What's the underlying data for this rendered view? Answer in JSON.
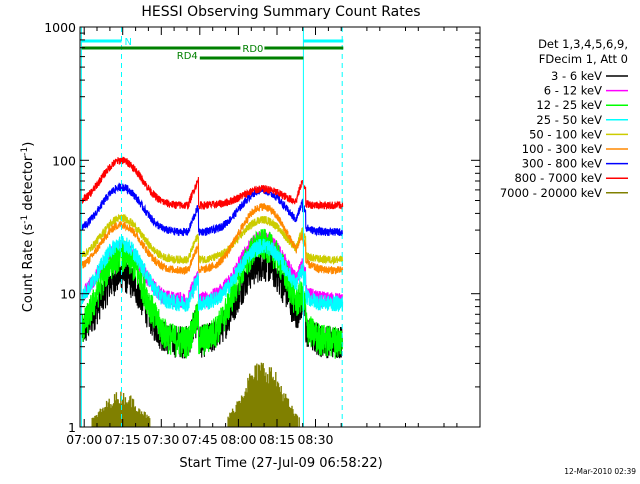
{
  "chart_data": {
    "type": "line",
    "title": "HESSI Observing Summary Count Rates",
    "xlabel": "Start Time (27-Jul-09 06:58:22)",
    "ylabel_main": "Count Rate (s",
    "ylabel_sup1": "-1",
    "ylabel_mid": " detector",
    "ylabel_sup2": "-1",
    "ylabel_end": ")",
    "yscale": "log",
    "ylim": [
      1,
      1000
    ],
    "xlim_minutes": [
      418.37,
      574.0
    ],
    "xtick_minutes": [
      420,
      435,
      450,
      465,
      480,
      495,
      510
    ],
    "xtick_labels": [
      "07:00",
      "07:15",
      "07:30",
      "07:45",
      "08:00",
      "08:15",
      "08:30"
    ],
    "ytick_values": [
      1,
      10,
      100,
      1000
    ],
    "ytick_labels": [
      "1",
      "10",
      "100",
      "1000"
    ],
    "legend_header": [
      "Det 1,3,4,5,6,9,",
      "FDecim 1, Att 0"
    ],
    "legend_position": "right",
    "series": [
      {
        "name": "3 - 6 keV",
        "color": "#000000",
        "base": 4.5,
        "peak1": 14,
        "peak2": 17
      },
      {
        "name": "6 - 12 keV",
        "color": "#ff00ff",
        "base": 9,
        "peak1": 22,
        "peak2": 26
      },
      {
        "name": "12 - 25 keV",
        "color": "#00ff00",
        "base": 4.5,
        "peak1": 20,
        "peak2": 24
      },
      {
        "name": "25 - 50 keV",
        "color": "#00ffff",
        "base": 8.5,
        "peak1": 24,
        "peak2": 23
      },
      {
        "name": "50 - 100 keV",
        "color": "#cccc00",
        "base": 18,
        "peak1": 37,
        "peak2": 36
      },
      {
        "name": "100 - 300 keV",
        "color": "#ff8800",
        "base": 15,
        "peak1": 33,
        "peak2": 45
      },
      {
        "name": "300 - 800 keV",
        "color": "#0000ff",
        "base": 29,
        "peak1": 63,
        "peak2": 60
      },
      {
        "name": "800 - 7000 keV",
        "color": "#ff0000",
        "base": 46,
        "peak1": 100,
        "peak2": 61
      },
      {
        "name": "7000 - 20000 keV",
        "color": "#808000",
        "base": 1,
        "peak1": 1.8,
        "peak2": 3
      }
    ],
    "hump1_center_minutes": 434.5,
    "hump2_center_minutes": 489.5,
    "hump_range_1": [
      421,
      447
    ],
    "hump_range_2": [
      476,
      504
    ],
    "saa_exit_minutes": 464.5,
    "transition_minutes": 505,
    "vertical_lines": [
      {
        "minutes": 418.9,
        "style": "solid",
        "color": "#00ffff"
      },
      {
        "minutes": 434.5,
        "style": "dashed",
        "color": "#00ffff"
      },
      {
        "minutes": 505.3,
        "style": "solid",
        "color": "#00ffff"
      },
      {
        "minutes": 520.4,
        "style": "dashed",
        "color": "#00ffff"
      }
    ],
    "flag_bars": [
      {
        "label": "N",
        "color": "#00ffff",
        "segments": [
          [
            419,
            434.5
          ],
          [
            505.3,
            520.8
          ]
        ],
        "level": "top"
      },
      {
        "label": "RD0",
        "color": "#008000",
        "segments": [
          [
            419,
            520.8
          ]
        ],
        "level": "mid"
      },
      {
        "label": "RD4",
        "color": "#008000",
        "segments": [
          [
            465,
            505.3
          ]
        ],
        "level": "low"
      }
    ]
  },
  "footer": {
    "timestamp": "12-Mar-2010 02:39"
  }
}
